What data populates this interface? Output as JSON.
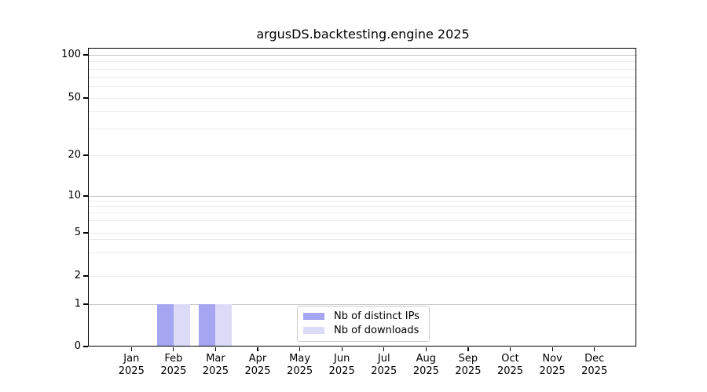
{
  "chart_data": {
    "type": "bar",
    "title": "argusDS.backtesting.engine 2025",
    "x_categories": [
      "Jan 2025",
      "Feb 2025",
      "Mar 2025",
      "Apr 2025",
      "May 2025",
      "Jun 2025",
      "Jul 2025",
      "Aug 2025",
      "Sep 2025",
      "Oct 2025",
      "Nov 2025",
      "Dec 2025"
    ],
    "series": [
      {
        "name": "Nb of distinct IPs",
        "color": "#a5a5f2",
        "values": [
          0,
          1,
          1,
          0,
          0,
          0,
          0,
          0,
          0,
          0,
          0,
          0
        ]
      },
      {
        "name": "Nb of downloads",
        "color": "#dbdbf8",
        "values": [
          0,
          1,
          1,
          0,
          0,
          0,
          0,
          0,
          0,
          0,
          0,
          0
        ]
      }
    ],
    "yscale": "symlog",
    "yticks": [
      0,
      1,
      2,
      5,
      10,
      20,
      50,
      100
    ],
    "ylim": [
      0,
      100
    ],
    "grid": "horizontal, log minor gridlines",
    "legend_position": "lower center"
  },
  "style": {
    "background": "#ffffff",
    "spine_color": "#000000",
    "text_color": "#000000",
    "grid_minor_color": "#ececec",
    "grid_major_color": "#c6c6c6",
    "legend_border_color": "#cccccc"
  }
}
